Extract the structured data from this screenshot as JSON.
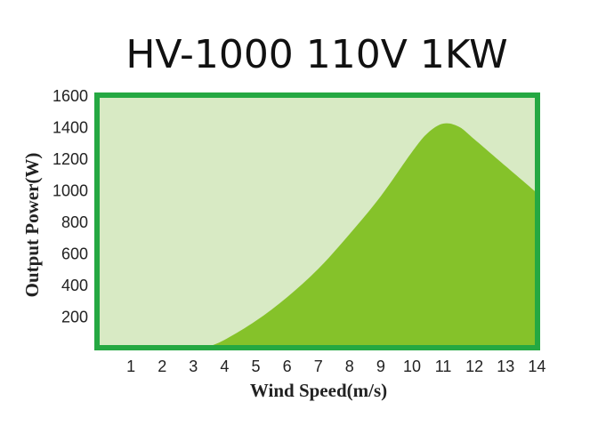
{
  "chart_data": {
    "type": "area",
    "title": "HV-1000 110V 1KW",
    "xlabel": "Wind Speed(m/s)",
    "ylabel": "Output Power(W)",
    "xlim": [
      0,
      14
    ],
    "ylim": [
      0,
      1600
    ],
    "x_ticks": [
      1,
      2,
      3,
      4,
      5,
      6,
      7,
      8,
      9,
      10,
      11,
      12,
      13,
      14
    ],
    "y_ticks": [
      200,
      400,
      600,
      800,
      1000,
      1200,
      1400,
      1600
    ],
    "grid": false,
    "legend": "none",
    "series": [
      {
        "x": [
          3.4,
          4,
          5,
          6,
          7,
          8,
          9,
          10,
          10.5,
          11,
          11.5,
          12,
          13,
          14
        ],
        "y": [
          0,
          50,
          170,
          320,
          500,
          720,
          960,
          1240,
          1360,
          1420,
          1400,
          1320,
          1150,
          980
        ]
      }
    ],
    "colors": {
      "plot_background": "#d8eac4",
      "area_fill": "#85c22a",
      "frame": "#25a842",
      "text": "#222222"
    }
  }
}
